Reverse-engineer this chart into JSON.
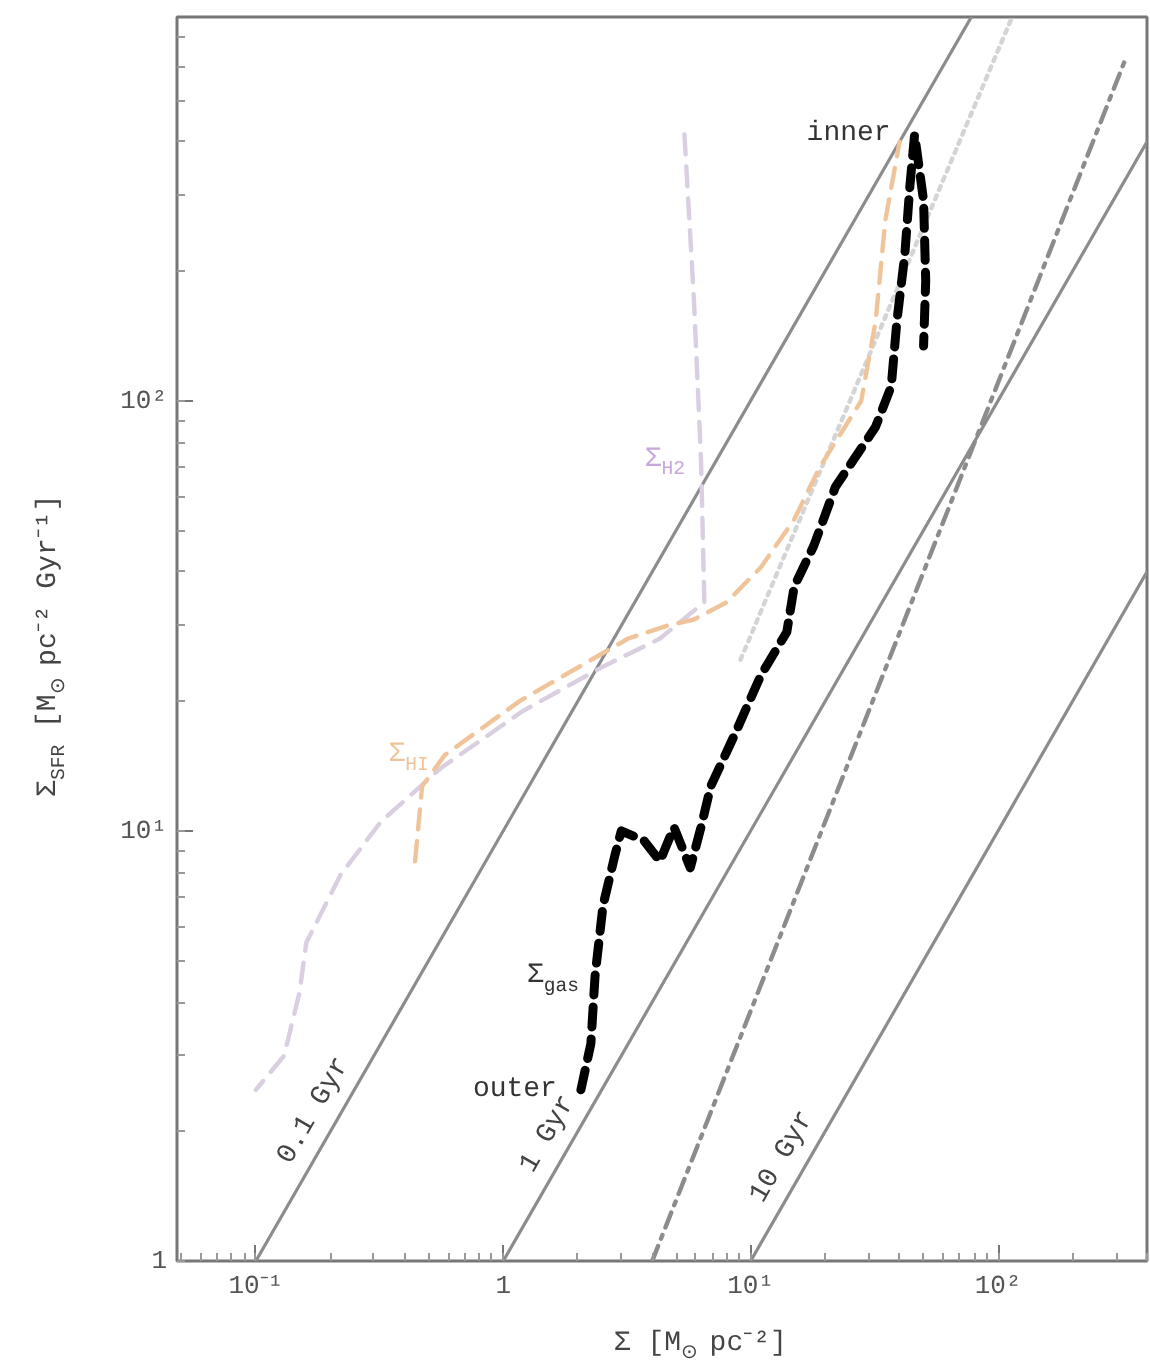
{
  "chart_data": {
    "type": "line",
    "log": "xy",
    "xlim": [
      0.048,
      400
    ],
    "ylim": [
      1,
      780
    ],
    "xticks": [
      {
        "value": 0.1,
        "label": "10⁻¹"
      },
      1,
      {
        "value": 10,
        "label": "10¹"
      },
      {
        "value": 100,
        "label": "10²"
      }
    ],
    "yticks": [
      1,
      {
        "value": 10,
        "label": "10¹"
      },
      {
        "value": 100,
        "label": "10²"
      }
    ],
    "xlabel": "Σ [M$_{⊙}$ pc⁻²]",
    "ylabel": "Σ$_{SFR}$ [M$_{⊙}$ pc⁻² Gyr⁻¹]",
    "annotations": [
      {
        "text": "inner",
        "x": 46,
        "y": 416
      },
      {
        "text": "outer",
        "x": 2.06,
        "y": 2.5
      }
    ],
    "series": [
      {
        "name": "0.1 Gyr",
        "line_style": "solid",
        "color": "#8c8c8c",
        "x": [
          0.1,
          78
        ],
        "values": [
          1,
          780
        ]
      },
      {
        "name": "1 Gyr",
        "line_style": "solid",
        "color": "#8c8c8c",
        "x": [
          1,
          400
        ],
        "values": [
          1,
          400
        ]
      },
      {
        "name": "10 Gyr",
        "line_style": "solid",
        "color": "#8c8c8c",
        "x": [
          10,
          400
        ],
        "values": [
          1,
          40
        ]
      },
      {
        "line_style": "dashdot",
        "color": "#8c8c8c",
        "x": [
          4,
          330
        ],
        "values": [
          1,
          630
        ]
      },
      {
        "line_style": "dotted",
        "color": "#d4d4d4",
        "x": [
          9.1,
          114
        ],
        "values": [
          25,
          780
        ]
      },
      {
        "name": "Σ$_{H2}$",
        "line_style": "dashed",
        "color": "#d9cfe0",
        "x": [
          5.4,
          5.9,
          6.3,
          6.5,
          4.3,
          2.5,
          1.2,
          0.56,
          0.32,
          0.22,
          0.16,
          0.15,
          0.13,
          0.1
        ],
        "values": [
          416,
          171,
          73,
          34,
          28,
          24,
          19,
          14,
          10.5,
          7.9,
          5.5,
          4.2,
          3.0,
          2.5
        ]
      },
      {
        "name": "Σ$_{HI}$",
        "line_style": "dashed",
        "color": "#f0c49a",
        "x": [
          0.44,
          0.47,
          0.58,
          1.16,
          3.2,
          4.6,
          5.9,
          8,
          11,
          15,
          19,
          28,
          32,
          35,
          40
        ],
        "values": [
          8.5,
          12.7,
          15,
          20,
          28,
          30,
          31,
          34,
          41,
          53,
          70,
          100,
          153,
          262,
          400
        ]
      },
      {
        "name": "Σ$_{gas}$",
        "line_style": "dashed",
        "color": "#000000",
        "x": [
          2.06,
          2.26,
          2.35,
          2.53,
          2.83,
          3.0,
          3.7,
          4.3,
          4.9,
          5.7,
          6.3,
          6.9,
          8.6,
          11,
          14,
          15,
          18,
          22,
          32,
          37,
          39,
          42,
          44,
          46,
          50,
          51,
          50
        ],
        "values": [
          2.5,
          3.2,
          4.6,
          6.7,
          8.8,
          10,
          9.5,
          8.5,
          10.2,
          8.2,
          10.2,
          12.7,
          16.7,
          23,
          29,
          37,
          46,
          63,
          87,
          108,
          153,
          219,
          315,
          416,
          292,
          190,
          134
        ]
      }
    ]
  }
}
